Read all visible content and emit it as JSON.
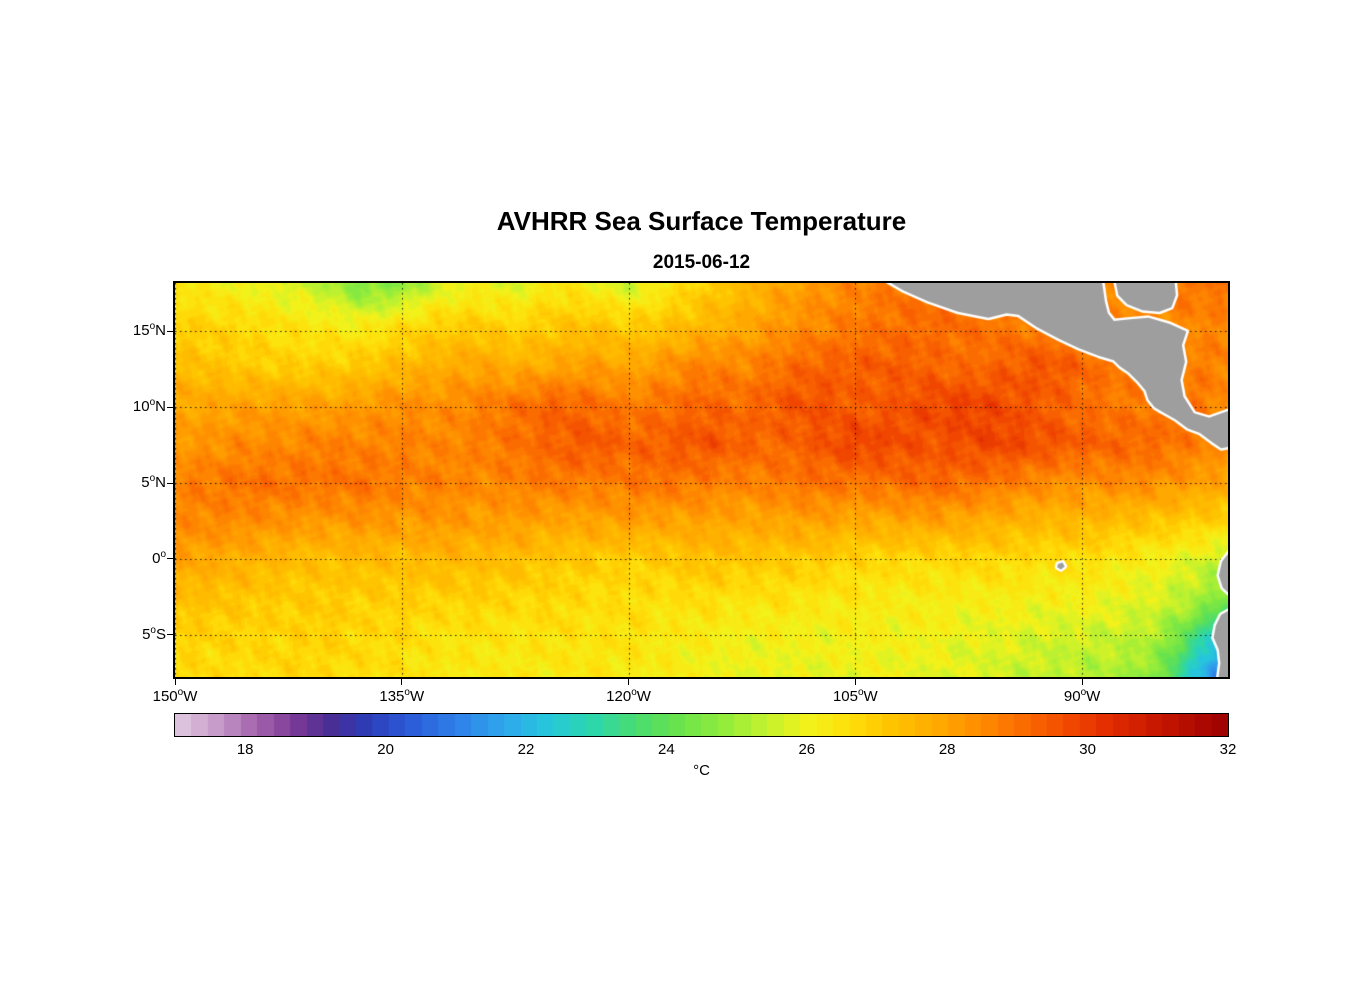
{
  "title": "AVHRR Sea Surface Temperature",
  "subtitle": "2015-06-12",
  "chart_data": {
    "type": "heatmap",
    "title": "AVHRR Sea Surface Temperature",
    "subtitle": "2015-06-12",
    "xlabel": "",
    "ylabel": "",
    "grid": "dotted",
    "background": "#FFFFFF",
    "land_color": "#9E9E9E",
    "coast_outline_color": "#FFFFFF",
    "lon_range": [
      -150,
      -80.35
    ],
    "lat_range": [
      -7.8,
      18.2
    ],
    "x_ticks": [
      {
        "value": -150,
        "deg": "150",
        "sup": "o",
        "dir": "W"
      },
      {
        "value": -135,
        "deg": "135",
        "sup": "o",
        "dir": "W"
      },
      {
        "value": -120,
        "deg": "120",
        "sup": "o",
        "dir": "W"
      },
      {
        "value": -105,
        "deg": "105",
        "sup": "o",
        "dir": "W"
      },
      {
        "value": -90,
        "deg": "90",
        "sup": "o",
        "dir": "W"
      }
    ],
    "y_ticks": [
      {
        "value": 15,
        "deg": "15",
        "sup": "o",
        "dir": "N"
      },
      {
        "value": 10,
        "deg": "10",
        "sup": "o",
        "dir": "N"
      },
      {
        "value": 5,
        "deg": "5",
        "sup": "o",
        "dir": "N"
      },
      {
        "value": 0,
        "deg": "0",
        "sup": "o",
        "dir": ""
      },
      {
        "value": -5,
        "deg": "5",
        "sup": "o",
        "dir": "S"
      }
    ],
    "colorbar": {
      "min": 17,
      "max": 32,
      "ticks": [
        18,
        20,
        22,
        24,
        26,
        28,
        30,
        32
      ],
      "unit": "°C",
      "stops": [
        [
          17.0,
          "#E2CBE2"
        ],
        [
          17.6,
          "#C79BC9"
        ],
        [
          18.1,
          "#A868B0"
        ],
        [
          18.7,
          "#7C3A96"
        ],
        [
          19.2,
          "#4A2D94"
        ],
        [
          19.7,
          "#2F3BB3"
        ],
        [
          20.3,
          "#2B59D8"
        ],
        [
          21.0,
          "#2F7FE8"
        ],
        [
          21.7,
          "#2FA8EC"
        ],
        [
          22.3,
          "#26C6DC"
        ],
        [
          22.9,
          "#2BD6B0"
        ],
        [
          23.5,
          "#46DC78"
        ],
        [
          24.1,
          "#66E24E"
        ],
        [
          24.8,
          "#90EC3C"
        ],
        [
          25.4,
          "#C2F22E"
        ],
        [
          26.0,
          "#F2F21B"
        ],
        [
          26.6,
          "#FFE00A"
        ],
        [
          27.2,
          "#FFC400"
        ],
        [
          27.9,
          "#FFA800"
        ],
        [
          28.5,
          "#FF8A00"
        ],
        [
          29.1,
          "#FB6A00"
        ],
        [
          29.7,
          "#F24A00"
        ],
        [
          30.3,
          "#E22C00"
        ],
        [
          31.1,
          "#C21500"
        ],
        [
          32.0,
          "#9B0000"
        ]
      ]
    },
    "sst_grid": {
      "lons": [
        -150,
        -147.5,
        -145,
        -142.5,
        -140,
        -137.5,
        -135,
        -132.5,
        -130,
        -127.5,
        -125,
        -122.5,
        -120,
        -117.5,
        -115,
        -112.5,
        -110,
        -107.5,
        -105,
        -102.5,
        -100,
        -97.5,
        -95,
        -92.5,
        -90,
        -87.5,
        -85,
        -82.5,
        -80
      ],
      "lats": [
        18,
        15.4,
        12.8,
        10.2,
        7.6,
        5,
        2.4,
        -0.2,
        -2.8,
        -5.4,
        -8
      ],
      "values": [
        [
          26.5,
          26.3,
          26.0,
          25.6,
          25.2,
          24.4,
          24.8,
          25.8,
          26.2,
          25.8,
          26.4,
          26.0,
          25.5,
          26.3,
          27.0,
          27.5,
          28.0,
          28.3,
          28.5,
          28.7,
          28.9,
          29.0,
          28.9,
          28.8,
          28.7,
          28.6,
          28.7,
          28.8,
          28.8
        ],
        [
          26.9,
          26.8,
          26.7,
          26.5,
          26.3,
          26.2,
          26.6,
          26.9,
          27.0,
          26.8,
          27.1,
          27.3,
          27.0,
          27.2,
          27.5,
          27.8,
          28.2,
          28.5,
          28.8,
          29.0,
          29.1,
          29.0,
          28.8,
          28.6,
          28.5,
          28.4,
          28.5,
          28.6,
          28.6
        ],
        [
          27.2,
          27.1,
          27.0,
          27.0,
          27.1,
          27.2,
          27.4,
          27.6,
          27.8,
          27.6,
          27.9,
          28.2,
          28.0,
          28.3,
          28.6,
          28.4,
          28.8,
          29.2,
          29.4,
          29.5,
          29.3,
          29.0,
          29.2,
          29.4,
          29.1,
          28.8,
          28.7,
          28.8,
          28.8
        ],
        [
          27.8,
          27.9,
          28.0,
          28.1,
          28.0,
          28.2,
          28.4,
          28.3,
          28.6,
          28.9,
          29.3,
          29.1,
          28.8,
          29.0,
          29.2,
          29.0,
          29.4,
          29.6,
          29.3,
          29.5,
          29.8,
          29.9,
          29.6,
          29.3,
          29.0,
          28.8,
          28.9,
          29.0,
          28.4
        ],
        [
          28.3,
          28.4,
          28.5,
          28.4,
          28.6,
          28.5,
          28.7,
          28.6,
          28.8,
          29.0,
          29.2,
          29.4,
          29.1,
          29.3,
          29.6,
          29.4,
          29.2,
          29.5,
          29.8,
          29.6,
          29.4,
          29.7,
          29.9,
          29.7,
          29.4,
          29.2,
          29.0,
          28.6,
          28.3
        ],
        [
          28.8,
          28.9,
          29.0,
          28.9,
          28.8,
          28.9,
          28.7,
          28.8,
          28.6,
          28.7,
          28.8,
          28.6,
          28.7,
          28.9,
          28.8,
          28.7,
          28.9,
          29.0,
          28.8,
          28.9,
          29.1,
          29.0,
          28.8,
          28.6,
          28.4,
          28.5,
          28.3,
          28.0,
          27.8
        ],
        [
          28.4,
          28.5,
          28.4,
          28.3,
          28.2,
          28.3,
          28.1,
          28.2,
          28.0,
          28.1,
          27.9,
          28.0,
          28.1,
          27.9,
          28.0,
          27.8,
          27.9,
          28.0,
          27.8,
          27.9,
          28.0,
          27.8,
          27.6,
          27.4,
          27.5,
          27.3,
          27.2,
          27.0,
          26.8
        ],
        [
          27.8,
          27.7,
          27.6,
          27.5,
          27.4,
          27.5,
          27.3,
          27.4,
          27.2,
          27.3,
          27.1,
          27.2,
          27.0,
          27.1,
          27.2,
          27.0,
          26.9,
          27.0,
          26.8,
          26.9,
          26.7,
          26.8,
          26.6,
          26.4,
          26.5,
          26.3,
          26.2,
          25.8,
          25.4
        ],
        [
          27.3,
          27.2,
          27.1,
          27.0,
          27.1,
          26.9,
          27.0,
          26.8,
          26.9,
          26.7,
          26.8,
          26.6,
          26.7,
          26.5,
          26.6,
          26.4,
          26.5,
          26.3,
          26.4,
          26.2,
          26.3,
          26.1,
          26.2,
          26.0,
          26.1,
          25.9,
          25.7,
          25.2,
          24.2
        ],
        [
          27.0,
          26.9,
          26.8,
          26.7,
          26.8,
          26.6,
          26.7,
          26.5,
          26.6,
          26.4,
          26.5,
          26.3,
          26.4,
          26.2,
          26.3,
          26.1,
          26.2,
          26.0,
          26.1,
          25.9,
          26.0,
          25.8,
          25.9,
          25.7,
          25.6,
          25.4,
          25.0,
          23.2,
          21.0
        ],
        [
          26.8,
          26.7,
          26.6,
          26.7,
          26.5,
          26.6,
          26.4,
          26.5,
          26.3,
          26.4,
          26.2,
          26.3,
          26.1,
          26.2,
          26.0,
          26.1,
          25.9,
          26.0,
          25.8,
          25.9,
          25.7,
          25.8,
          25.6,
          25.5,
          25.3,
          25.1,
          24.4,
          22.0,
          20.2
        ]
      ]
    },
    "land_polygons": [
      {
        "name": "mexico-central-america",
        "points": [
          [
            -103.0,
            18.4
          ],
          [
            -101.8,
            17.7
          ],
          [
            -100.2,
            17.0
          ],
          [
            -98.2,
            16.3
          ],
          [
            -96.2,
            15.9
          ],
          [
            -95.0,
            16.2
          ],
          [
            -94.2,
            16.1
          ],
          [
            -93.0,
            15.3
          ],
          [
            -91.5,
            14.5
          ],
          [
            -90.2,
            13.9
          ],
          [
            -88.9,
            13.4
          ],
          [
            -87.9,
            13.1
          ],
          [
            -87.5,
            12.7
          ],
          [
            -86.9,
            12.3
          ],
          [
            -86.3,
            11.7
          ],
          [
            -85.8,
            11.1
          ],
          [
            -85.6,
            10.5
          ],
          [
            -85.2,
            10.0
          ],
          [
            -84.7,
            9.7
          ],
          [
            -83.8,
            9.2
          ],
          [
            -83.0,
            8.6
          ],
          [
            -82.2,
            8.3
          ],
          [
            -81.4,
            7.7
          ],
          [
            -80.8,
            7.3
          ],
          [
            -80.2,
            7.4
          ],
          [
            -80.2,
            9.8
          ],
          [
            -81.6,
            9.3
          ],
          [
            -82.6,
            9.6
          ],
          [
            -83.3,
            10.7
          ],
          [
            -83.5,
            11.8
          ],
          [
            -83.2,
            13.0
          ],
          [
            -83.4,
            14.1
          ],
          [
            -83.1,
            15.0
          ],
          [
            -84.2,
            15.5
          ],
          [
            -85.6,
            15.9
          ],
          [
            -86.8,
            15.8
          ],
          [
            -87.9,
            15.7
          ],
          [
            -88.3,
            16.2
          ],
          [
            -88.5,
            17.0
          ],
          [
            -88.7,
            18.4
          ]
        ]
      },
      {
        "name": "honduras-caribbean-lobe",
        "points": [
          [
            -87.8,
            18.4
          ],
          [
            -87.6,
            17.4
          ],
          [
            -87.0,
            16.8
          ],
          [
            -86.0,
            16.4
          ],
          [
            -84.9,
            16.3
          ],
          [
            -84.1,
            16.6
          ],
          [
            -83.8,
            17.4
          ],
          [
            -83.9,
            18.4
          ]
        ]
      },
      {
        "name": "south-america",
        "points": [
          [
            -80.2,
            0.5
          ],
          [
            -80.75,
            -0.2
          ],
          [
            -80.95,
            -1.1
          ],
          [
            -80.7,
            -1.9
          ],
          [
            -80.15,
            -2.4
          ],
          [
            -79.9,
            -3.2
          ],
          [
            -80.8,
            -3.7
          ],
          [
            -81.15,
            -4.4
          ],
          [
            -81.3,
            -5.2
          ],
          [
            -80.95,
            -6.0
          ],
          [
            -80.85,
            -6.9
          ],
          [
            -81.0,
            -8.0
          ],
          [
            -80.0,
            -8.0
          ]
        ]
      },
      {
        "name": "galapagos-island",
        "points": [
          [
            -91.6,
            -0.35
          ],
          [
            -91.3,
            -0.25
          ],
          [
            -91.15,
            -0.5
          ],
          [
            -91.4,
            -0.7
          ],
          [
            -91.65,
            -0.55
          ]
        ]
      }
    ]
  }
}
